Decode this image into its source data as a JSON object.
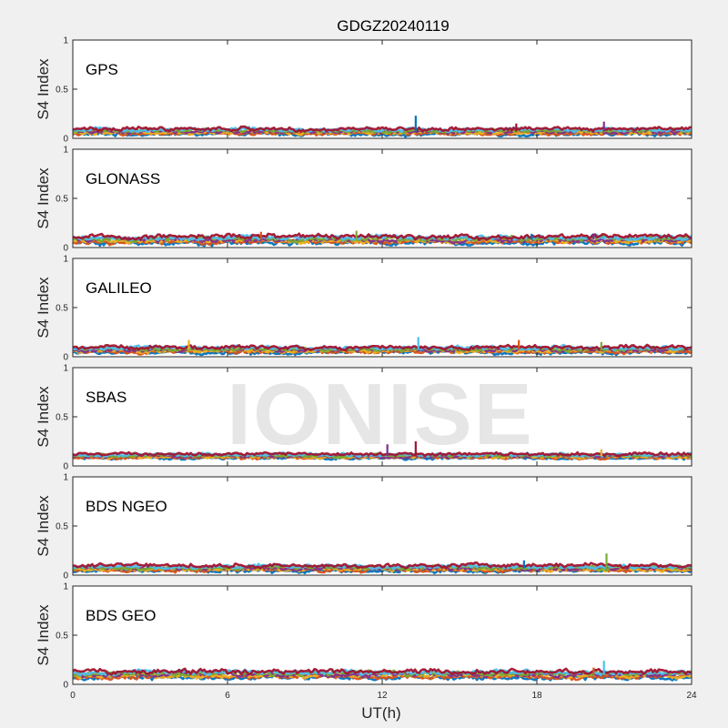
{
  "chart_data": {
    "type": "line",
    "title": "GDGZ20240119",
    "xlabel": "UT(h)",
    "ylabel": "S4 Index",
    "xlim": [
      0,
      24
    ],
    "ylim": [
      0,
      1
    ],
    "x_ticks": [
      0,
      6,
      12,
      18,
      24
    ],
    "y_ticks": [
      0,
      0.5,
      1
    ],
    "y_tick_labels": [
      "0",
      "0.5",
      "1"
    ],
    "grid": false,
    "watermark": "IONISE",
    "series_colors": [
      "#0072BD",
      "#D95319",
      "#EDB120",
      "#7E2F8E",
      "#77AC30",
      "#4DBEEE",
      "#A2142F"
    ],
    "panels": [
      {
        "label": "GPS",
        "baseline": 0.07,
        "spread": 0.025,
        "spikes": [
          {
            "x": 13.3,
            "y": 0.23
          },
          {
            "x": 20.6,
            "y": 0.17
          },
          {
            "x": 17.2,
            "y": 0.15
          }
        ]
      },
      {
        "label": "GLONASS",
        "baseline": 0.08,
        "spread": 0.03,
        "spikes": [
          {
            "x": 7.3,
            "y": 0.16
          },
          {
            "x": 11.0,
            "y": 0.17
          },
          {
            "x": 17.8,
            "y": 0.14
          },
          {
            "x": 20.2,
            "y": 0.14
          }
        ]
      },
      {
        "label": "GALILEO",
        "baseline": 0.07,
        "spread": 0.025,
        "spikes": [
          {
            "x": 4.5,
            "y": 0.17
          },
          {
            "x": 13.4,
            "y": 0.2
          },
          {
            "x": 17.3,
            "y": 0.17
          },
          {
            "x": 20.5,
            "y": 0.15
          }
        ]
      },
      {
        "label": "SBAS",
        "baseline": 0.1,
        "spread": 0.02,
        "spikes": [
          {
            "x": 12.2,
            "y": 0.22
          },
          {
            "x": 13.3,
            "y": 0.25
          },
          {
            "x": 20.5,
            "y": 0.17
          }
        ]
      },
      {
        "label": "BDS NGEO",
        "baseline": 0.07,
        "spread": 0.025,
        "spikes": [
          {
            "x": 20.7,
            "y": 0.22
          },
          {
            "x": 17.5,
            "y": 0.15
          }
        ]
      },
      {
        "label": "BDS GEO",
        "baseline": 0.1,
        "spread": 0.03,
        "spikes": [
          {
            "x": 20.6,
            "y": 0.24
          },
          {
            "x": 20.2,
            "y": 0.17
          }
        ]
      }
    ]
  }
}
